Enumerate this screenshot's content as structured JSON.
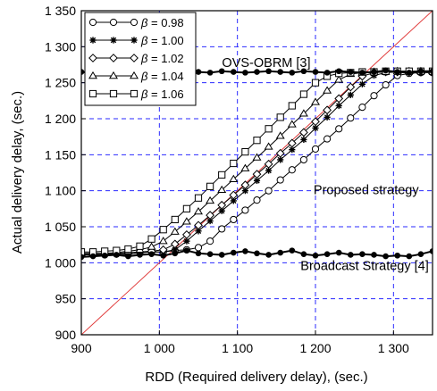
{
  "chart_data": {
    "type": "line",
    "title": "",
    "xlabel": "RDD (Required delivery delay), (sec.)",
    "ylabel": "Actual delivery delay, (sec.)",
    "xlim": [
      900,
      1350
    ],
    "ylim": [
      900,
      1350
    ],
    "x_ticks": [
      900,
      1000,
      1100,
      1200,
      1300
    ],
    "x_tick_labels": [
      "900",
      "1 000",
      "1 100",
      "1 200",
      "1 300"
    ],
    "y_ticks": [
      900,
      950,
      1000,
      1050,
      1100,
      1150,
      1200,
      1250,
      1300,
      1350
    ],
    "y_tick_labels": [
      "900",
      "950",
      "1 000",
      "1 050",
      "1 100",
      "1 150",
      "1 200",
      "1 250",
      "1 300",
      "1 350"
    ],
    "grid": true,
    "legend_position": "top-left",
    "legend_prefix": "β = ",
    "annotations": [
      {
        "text": "OVS-OBRM [3]",
        "x": 1137,
        "y": 1272
      },
      {
        "text": "Proposed strategy",
        "x": 1265,
        "y": 1095
      },
      {
        "text": "Broadcast Strategy [4]",
        "x": 1263,
        "y": 990
      }
    ],
    "reference_line": {
      "x": [
        900,
        1350
      ],
      "y": [
        900,
        1350
      ],
      "color": "#e03a3a"
    },
    "series": [
      {
        "name": "0.98",
        "marker": "circle",
        "color": "#000000",
        "x": [
          900,
          915,
          930,
          945,
          960,
          975,
          990,
          1005,
          1020,
          1035,
          1050,
          1065,
          1080,
          1095,
          1110,
          1125,
          1140,
          1155,
          1170,
          1185,
          1200,
          1215,
          1230,
          1245,
          1260,
          1275,
          1290,
          1305,
          1320,
          1335,
          1350
        ],
        "y": [
          1011,
          1011,
          1011,
          1012,
          1012,
          1014,
          1015,
          1015,
          1017,
          1018,
          1021,
          1030,
          1047,
          1060,
          1073,
          1087,
          1100,
          1115,
          1129,
          1143,
          1158,
          1172,
          1186,
          1201,
          1216,
          1232,
          1247,
          1260,
          1263,
          1264,
          1264
        ]
      },
      {
        "name": "1.00",
        "marker": "star",
        "color": "#000000",
        "x": [
          900,
          915,
          930,
          945,
          960,
          975,
          990,
          1005,
          1020,
          1035,
          1050,
          1065,
          1080,
          1095,
          1110,
          1125,
          1140,
          1155,
          1170,
          1185,
          1200,
          1215,
          1230,
          1245,
          1260,
          1275,
          1290,
          1305,
          1320,
          1335,
          1350
        ],
        "y": [
          1011,
          1011,
          1011,
          1012,
          1012,
          1014,
          1015,
          1015,
          1018,
          1030,
          1044,
          1058,
          1072,
          1086,
          1100,
          1114,
          1128,
          1143,
          1157,
          1171,
          1187,
          1202,
          1218,
          1233,
          1248,
          1260,
          1264,
          1265,
          1265,
          1265,
          1265
        ]
      },
      {
        "name": "1.02",
        "marker": "diamond",
        "color": "#000000",
        "x": [
          900,
          915,
          930,
          945,
          960,
          975,
          990,
          1005,
          1020,
          1035,
          1050,
          1065,
          1080,
          1095,
          1110,
          1125,
          1140,
          1155,
          1170,
          1185,
          1200,
          1215,
          1230,
          1245,
          1260,
          1275,
          1290,
          1305,
          1320,
          1335,
          1350
        ],
        "y": [
          1012,
          1012,
          1012,
          1013,
          1014,
          1015,
          1016,
          1018,
          1026,
          1039,
          1052,
          1066,
          1080,
          1094,
          1108,
          1123,
          1137,
          1152,
          1166,
          1181,
          1196,
          1212,
          1228,
          1244,
          1259,
          1264,
          1265,
          1265,
          1265,
          1265,
          1265
        ]
      },
      {
        "name": "1.04",
        "marker": "triangle",
        "color": "#000000",
        "x": [
          900,
          915,
          930,
          945,
          960,
          975,
          990,
          1005,
          1020,
          1035,
          1050,
          1065,
          1080,
          1095,
          1110,
          1125,
          1140,
          1155,
          1170,
          1185,
          1200,
          1215,
          1230,
          1245,
          1260,
          1275,
          1290,
          1305,
          1320,
          1335,
          1350
        ],
        "y": [
          1013,
          1013,
          1013,
          1014,
          1016,
          1018,
          1022,
          1030,
          1043,
          1057,
          1071,
          1086,
          1101,
          1116,
          1131,
          1146,
          1161,
          1176,
          1192,
          1207,
          1223,
          1239,
          1254,
          1262,
          1264,
          1265,
          1265,
          1266,
          1266,
          1266,
          1266
        ]
      },
      {
        "name": "1.06",
        "marker": "square",
        "color": "#000000",
        "x": [
          900,
          915,
          930,
          945,
          960,
          975,
          990,
          1005,
          1020,
          1035,
          1050,
          1065,
          1080,
          1095,
          1110,
          1125,
          1140,
          1155,
          1170,
          1185,
          1200,
          1215,
          1230,
          1245,
          1260,
          1275,
          1290,
          1305,
          1320,
          1335,
          1350
        ],
        "y": [
          1015,
          1015,
          1016,
          1017,
          1019,
          1023,
          1033,
          1046,
          1060,
          1075,
          1090,
          1106,
          1122,
          1138,
          1154,
          1170,
          1186,
          1202,
          1218,
          1234,
          1250,
          1259,
          1263,
          1264,
          1265,
          1265,
          1266,
          1266,
          1266,
          1266,
          1266
        ]
      },
      {
        "name": "OVS-OBRM [3]",
        "marker": "dot",
        "color": "#000000",
        "x": [
          900,
          915,
          930,
          945,
          960,
          975,
          990,
          1005,
          1020,
          1035,
          1050,
          1065,
          1080,
          1095,
          1110,
          1125,
          1140,
          1155,
          1170,
          1185,
          1200,
          1215,
          1230,
          1245,
          1260,
          1275,
          1290,
          1305,
          1320,
          1335,
          1350
        ],
        "y": [
          1265,
          1264,
          1266,
          1265,
          1263,
          1265,
          1266,
          1264,
          1265,
          1267,
          1265,
          1264,
          1266,
          1265,
          1264,
          1265,
          1266,
          1265,
          1264,
          1266,
          1265,
          1264,
          1266,
          1265,
          1264,
          1265,
          1267,
          1265,
          1264,
          1266,
          1266
        ]
      },
      {
        "name": "Broadcast Strategy [4]",
        "marker": "dot",
        "color": "#000000",
        "x": [
          900,
          915,
          930,
          945,
          960,
          975,
          990,
          1005,
          1020,
          1035,
          1050,
          1065,
          1080,
          1095,
          1110,
          1125,
          1140,
          1155,
          1170,
          1185,
          1200,
          1215,
          1230,
          1245,
          1260,
          1275,
          1290,
          1305,
          1320,
          1335,
          1350
        ],
        "y": [
          1008,
          1009,
          1010,
          1011,
          1009,
          1011,
          1012,
          1010,
          1013,
          1017,
          1013,
          1012,
          1011,
          1014,
          1016,
          1013,
          1011,
          1014,
          1017,
          1012,
          1010,
          1012,
          1014,
          1011,
          1012,
          1011,
          1009,
          1010,
          1009,
          1012,
          1016
        ]
      }
    ]
  }
}
